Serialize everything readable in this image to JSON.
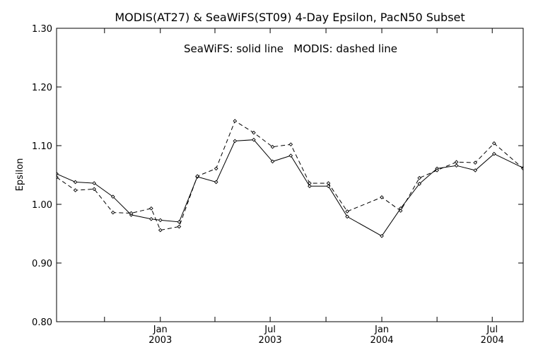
{
  "chart_data": {
    "type": "line",
    "title": "MODIS(AT27) & SeaWiFS(ST09) 4-Day Epsilon, PacN50 Subset",
    "annotation": "SeaWiFS: solid line   MODIS: dashed line",
    "ylabel": "Epsilon",
    "xlabel": "",
    "ylim": [
      0.8,
      1.3
    ],
    "xlim": [
      "2002-07-14",
      "2004-08-21"
    ],
    "y_ticks": [
      "0.80",
      "0.90",
      "1.00",
      "1.10",
      "1.20",
      "1.30"
    ],
    "x_ticks": [
      {
        "date": "2003-01-01",
        "month": "Jan",
        "year": "2003"
      },
      {
        "date": "2003-07-01",
        "month": "Jul",
        "year": "2003"
      },
      {
        "date": "2004-01-01",
        "month": "Jan",
        "year": "2004"
      },
      {
        "date": "2004-07-01",
        "month": "Jul",
        "year": "2004"
      }
    ],
    "x_minor_ticks": [
      "2002-10-01",
      "2003-04-01",
      "2003-10-01",
      "2004-04-01"
    ],
    "grid": false,
    "series": [
      {
        "name": "SeaWiFS",
        "style": "solid",
        "color": "#000000",
        "points": [
          [
            "2002-07-14",
            1.052
          ],
          [
            "2002-08-14",
            1.038
          ],
          [
            "2002-09-14",
            1.036
          ],
          [
            "2002-10-15",
            1.013
          ],
          [
            "2002-11-14",
            0.982
          ],
          [
            "2002-12-17",
            0.975
          ],
          [
            "2003-01-01",
            0.973
          ],
          [
            "2003-02-01",
            0.97
          ],
          [
            "2003-03-03",
            1.047
          ],
          [
            "2003-04-03",
            1.038
          ],
          [
            "2003-05-04",
            1.108
          ],
          [
            "2003-06-04",
            1.11
          ],
          [
            "2003-07-05",
            1.073
          ],
          [
            "2003-08-04",
            1.083
          ],
          [
            "2003-09-04",
            1.031
          ],
          [
            "2003-10-05",
            1.031
          ],
          [
            "2003-11-05",
            0.979
          ],
          [
            "2004-01-01",
            0.946
          ],
          [
            "2004-02-01",
            0.993
          ],
          [
            "2004-03-03",
            1.035
          ],
          [
            "2004-04-01",
            1.061
          ],
          [
            "2004-05-03",
            1.066
          ],
          [
            "2004-06-03",
            1.058
          ],
          [
            "2004-07-04",
            1.086
          ],
          [
            "2004-08-21",
            1.062
          ]
        ]
      },
      {
        "name": "MODIS",
        "style": "dashed",
        "color": "#000000",
        "points": [
          [
            "2002-07-14",
            1.046
          ],
          [
            "2002-08-14",
            1.024
          ],
          [
            "2002-09-14",
            1.026
          ],
          [
            "2002-10-15",
            0.986
          ],
          [
            "2002-11-14",
            0.985
          ],
          [
            "2002-12-17",
            0.993
          ],
          [
            "2003-01-01",
            0.956
          ],
          [
            "2003-02-01",
            0.962
          ],
          [
            "2003-03-03",
            1.048
          ],
          [
            "2003-04-03",
            1.061
          ],
          [
            "2003-05-04",
            1.142
          ],
          [
            "2003-06-04",
            1.122
          ],
          [
            "2003-07-05",
            1.098
          ],
          [
            "2003-08-04",
            1.102
          ],
          [
            "2003-09-04",
            1.036
          ],
          [
            "2003-10-05",
            1.036
          ],
          [
            "2003-11-05",
            0.988
          ],
          [
            "2004-01-01",
            1.012
          ],
          [
            "2004-02-01",
            0.989
          ],
          [
            "2004-03-03",
            1.045
          ],
          [
            "2004-04-01",
            1.058
          ],
          [
            "2004-05-03",
            1.072
          ],
          [
            "2004-06-03",
            1.071
          ],
          [
            "2004-07-04",
            1.104
          ],
          [
            "2004-08-21",
            1.061
          ]
        ]
      }
    ]
  }
}
